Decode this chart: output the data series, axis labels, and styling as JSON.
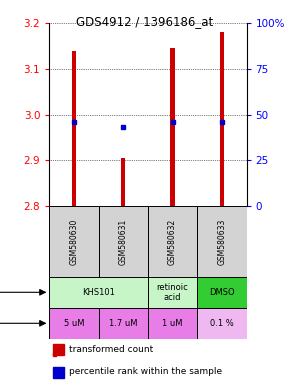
{
  "title": "GDS4912 / 1396186_at",
  "samples": [
    "GSM580630",
    "GSM580631",
    "GSM580632",
    "GSM580633"
  ],
  "bar_tops": [
    3.14,
    2.905,
    3.145,
    3.18
  ],
  "bar_bottom": 2.8,
  "blue_dots": [
    2.984,
    2.974,
    2.984,
    2.984
  ],
  "ylim": [
    2.8,
    3.2
  ],
  "yticks_left": [
    2.8,
    2.9,
    3.0,
    3.1,
    3.2
  ],
  "yticks_right": [
    0,
    25,
    50,
    75,
    100
  ],
  "ytick_right_labels": [
    "0",
    "25",
    "50",
    "75",
    "100%"
  ],
  "agents": [
    [
      "KHS101",
      2
    ],
    [
      "retinoic\nacid",
      1
    ],
    [
      "DMSO",
      1
    ]
  ],
  "agent_colors": [
    "#c8f5c8",
    "#c8f5c8",
    "#33cc33"
  ],
  "dose_labels": [
    "5 uM",
    "1.7 uM",
    "1 uM",
    "0.1 %"
  ],
  "dose_color": "#e87de8",
  "dose_last_color": "#f0b8f0",
  "sample_bg": "#d3d3d3",
  "bar_color": "#cc0000",
  "dot_color": "#0000cc",
  "legend_bar_color": "#cc0000",
  "legend_dot_color": "#0000cc"
}
